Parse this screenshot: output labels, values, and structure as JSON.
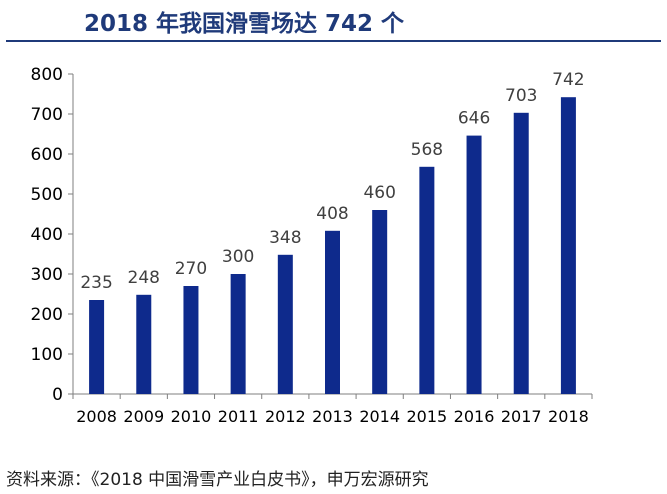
{
  "title": "2018 年我国滑雪场达 742 个",
  "source": "资料来源：《2018 中国滑雪产业白皮书》，申万宏源研究",
  "colors": {
    "bar": "#0e2a8c",
    "title": "#1f3a7a",
    "axis": "#7f7f7f",
    "label": "#404040"
  },
  "chart_data": {
    "type": "bar",
    "title": "2018 年我国滑雪场达 742 个",
    "xlabel": "",
    "ylabel": "",
    "categories": [
      "2008",
      "2009",
      "2010",
      "2011",
      "2012",
      "2013",
      "2014",
      "2015",
      "2016",
      "2017",
      "2018"
    ],
    "values": [
      235,
      248,
      270,
      300,
      348,
      408,
      460,
      568,
      646,
      703,
      742
    ],
    "ylim": [
      0,
      800
    ],
    "yticks": [
      0,
      100,
      200,
      300,
      400,
      500,
      600,
      700,
      800
    ],
    "grid": false,
    "legend": "none"
  }
}
